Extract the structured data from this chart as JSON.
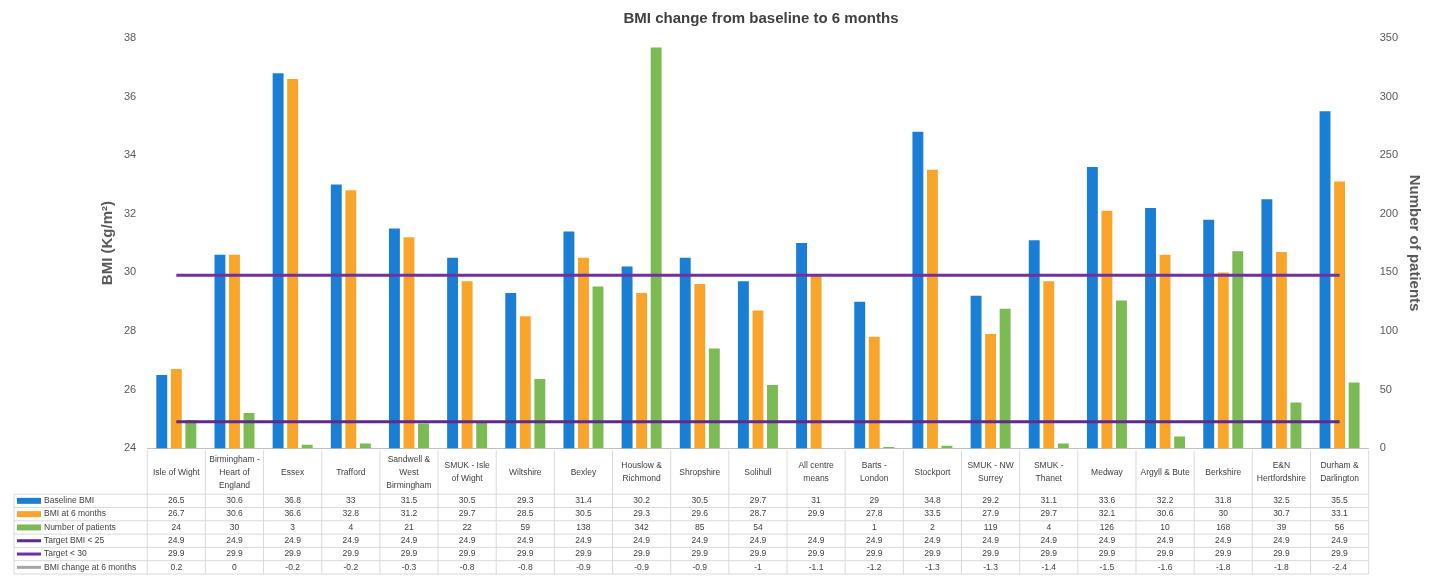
{
  "chart_data": {
    "type": "bar",
    "title": "BMI change from baseline to 6 months",
    "ylabel": "BMI (Kg/m²)",
    "y2label": "Number of patients",
    "categories": [
      "Isle of Wight",
      "Birmingham - Heart of England",
      "Essex",
      "Trafford",
      "Sandwell & West Birmingham",
      "SMUK - Isle of Wight",
      "Wiltshire",
      "Bexley",
      "Houslow & Richmond",
      "Shropshire",
      "Solihull",
      "All centre means",
      "Barts - London",
      "Stockport",
      "SMUK - NW Surrey",
      "SMUK - Thanet",
      "Medway",
      "Argyll & Bute",
      "Berkshire",
      "E&N Hertfordshire",
      "Durham & Darlington"
    ],
    "series": [
      {
        "name": "Baseline BMI",
        "color": "#1a7fd4",
        "values": [
          26.5,
          30.6,
          36.8,
          33,
          31.5,
          30.5,
          29.3,
          31.4,
          30.2,
          30.5,
          29.7,
          31,
          29,
          34.8,
          29.2,
          31.1,
          33.6,
          32.2,
          31.8,
          32.5,
          35.5
        ]
      },
      {
        "name": "BMI at 6 months",
        "color": "#f9a52c",
        "values": [
          26.7,
          30.6,
          36.6,
          32.8,
          31.2,
          29.7,
          28.5,
          30.5,
          29.3,
          29.6,
          28.7,
          29.9,
          27.8,
          33.5,
          27.9,
          29.7,
          32.1,
          30.6,
          30,
          30.7,
          33.1
        ]
      },
      {
        "name": "Number of patients",
        "axis": "y2",
        "color": "#7cba54",
        "values": [
          24,
          30,
          3,
          4,
          21,
          22,
          59,
          138,
          342,
          85,
          54,
          null,
          1,
          2,
          119,
          4,
          126,
          10,
          168,
          39,
          56
        ]
      },
      {
        "name": "Target BMI < 25",
        "type": "line",
        "color": "#5e2a8c",
        "values": [
          24.9,
          24.9,
          24.9,
          24.9,
          24.9,
          24.9,
          24.9,
          24.9,
          24.9,
          24.9,
          24.9,
          24.9,
          24.9,
          24.9,
          24.9,
          24.9,
          24.9,
          24.9,
          24.9,
          24.9,
          24.9
        ]
      },
      {
        "name": "Target < 30",
        "type": "line",
        "color": "#7030a0",
        "values": [
          29.9,
          29.9,
          29.9,
          29.9,
          29.9,
          29.9,
          29.9,
          29.9,
          29.9,
          29.9,
          29.9,
          29.9,
          29.9,
          29.9,
          29.9,
          29.9,
          29.9,
          29.9,
          29.9,
          29.9,
          29.9
        ]
      },
      {
        "name": "BMI change at 6 months",
        "type": "line",
        "color": "#a6a6a6",
        "values": [
          null,
          null,
          null,
          null,
          null,
          null,
          null,
          null,
          null,
          null,
          null,
          null,
          null,
          null,
          null,
          null,
          null,
          null,
          null,
          null,
          null
        ],
        "value_labels": [
          "0.2",
          "0",
          "-0.2",
          "-0.2",
          "-0.3",
          "-0.8",
          "-0.8",
          "-0.9",
          "-0.9",
          "-0.9",
          "-1",
          "-1.1",
          "-1.2",
          "-1.3",
          "-1.3",
          "-1.4",
          "-1.5",
          "-1.6",
          "-1.8",
          "-1.8",
          "-2.4"
        ]
      }
    ],
    "ylim": [
      24,
      38
    ],
    "yticks": [
      24,
      26,
      28,
      30,
      32,
      34,
      36,
      38
    ],
    "y2lim": [
      0,
      350
    ],
    "y2ticks": [
      0,
      50,
      100,
      150,
      200,
      250,
      300,
      350
    ],
    "data_labels": true,
    "legend": "bottom",
    "marker": "none",
    "line_style": "solid"
  }
}
